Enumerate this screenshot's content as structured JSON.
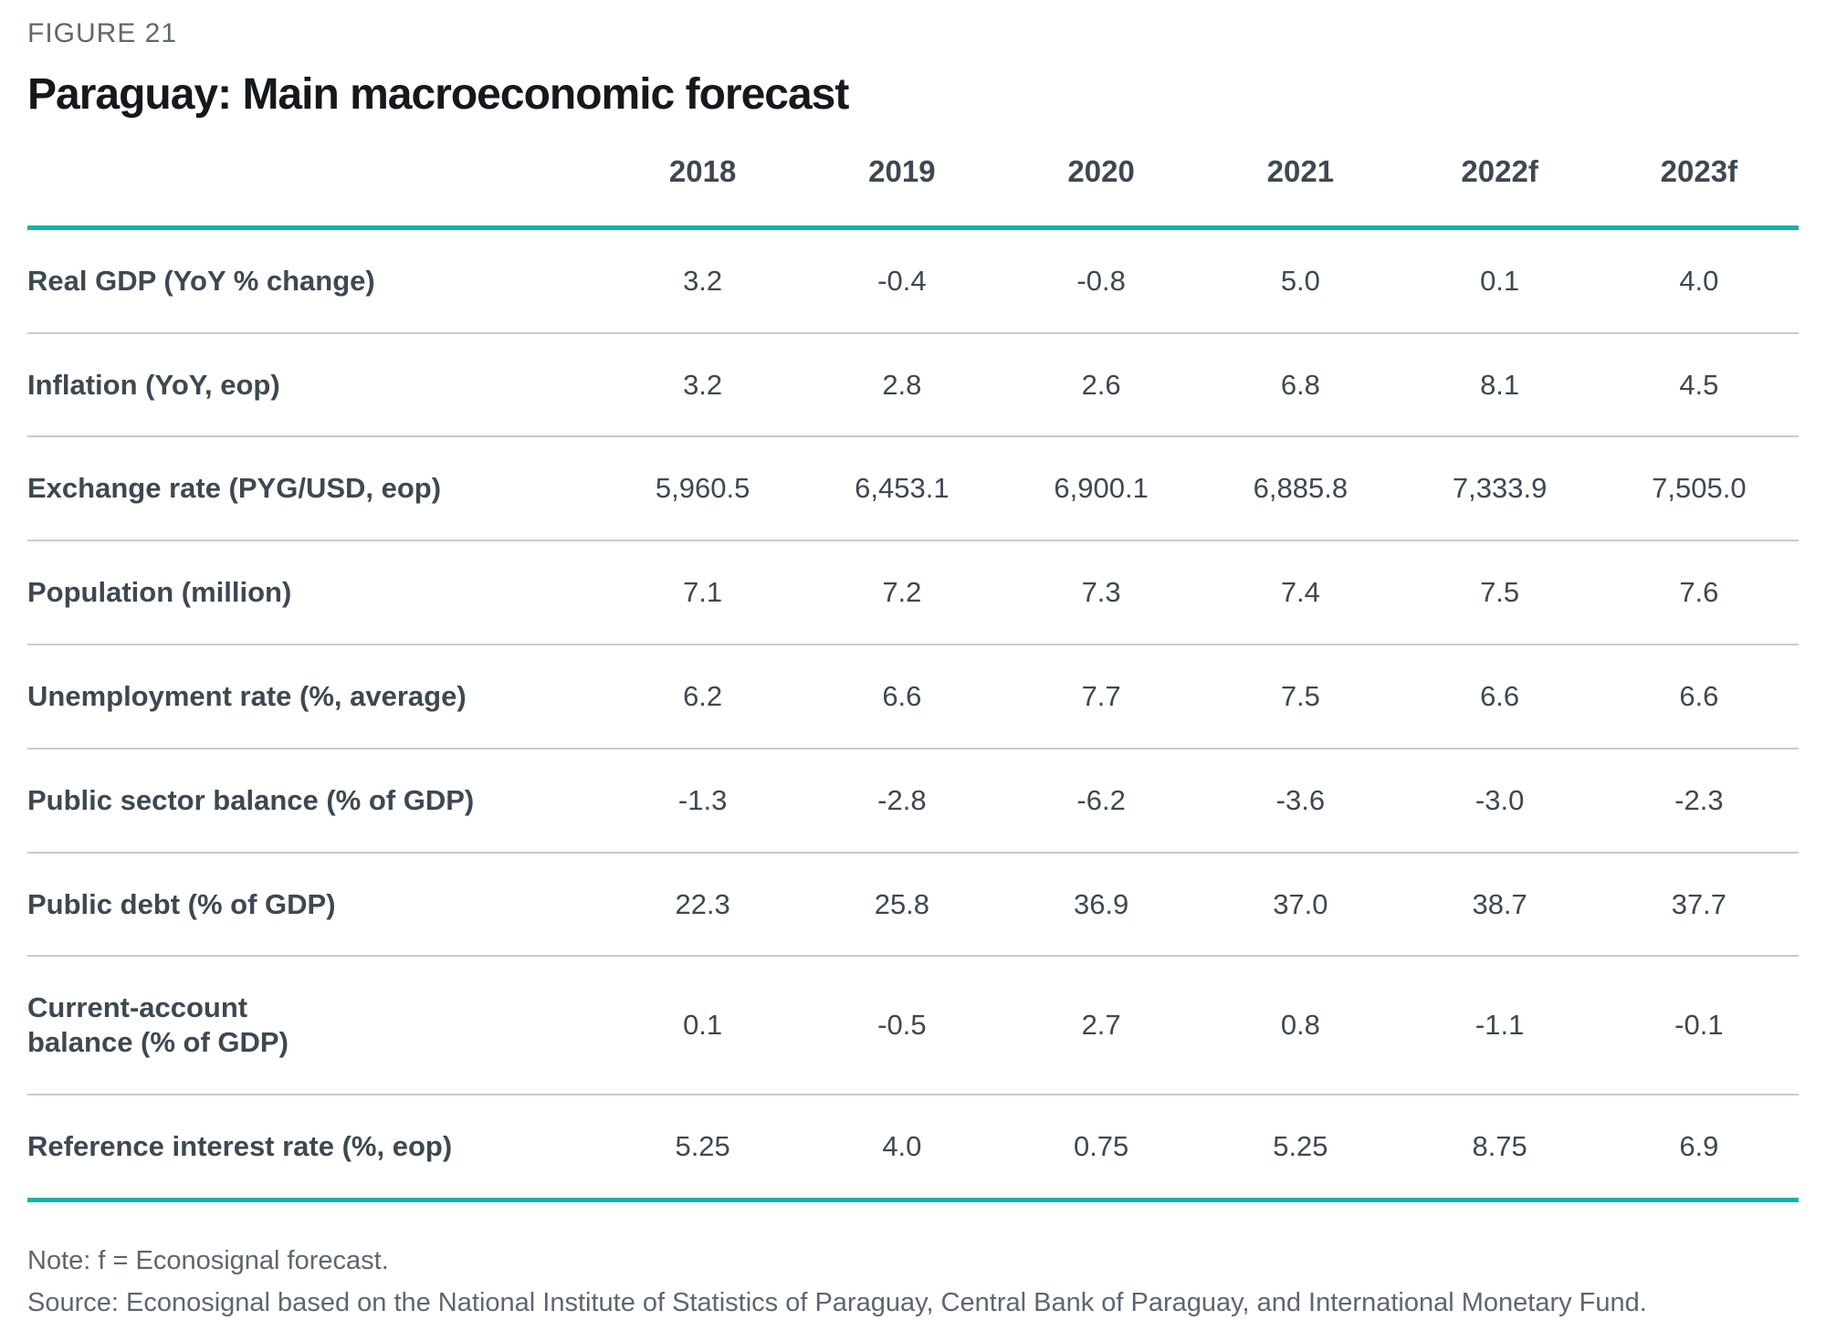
{
  "figure_label": "FIGURE 21",
  "title": "Paraguay: Main macroeconomic forecast",
  "colors": {
    "accent_teal": "#12b3ab",
    "title_black": "#15181c",
    "figure_label_gray": "#5f6770",
    "table_text_dark": "#3d4852",
    "row_divider_gray": "#c6cbcf",
    "footnote_gray": "#5d6670"
  },
  "chart_data": {
    "type": "table",
    "title": "Paraguay: Main macroeconomic forecast",
    "columns": [
      "2018",
      "2019",
      "2020",
      "2021",
      "2022f",
      "2023f"
    ],
    "rows": [
      {
        "label": "Real GDP (YoY % change)",
        "values": [
          "3.2",
          "-0.4",
          "-0.8",
          "5.0",
          "0.1",
          "4.0"
        ]
      },
      {
        "label": "Inflation (YoY, eop)",
        "values": [
          "3.2",
          "2.8",
          "2.6",
          "6.8",
          "8.1",
          "4.5"
        ]
      },
      {
        "label": "Exchange rate (PYG/USD, eop)",
        "values": [
          "5,960.5",
          "6,453.1",
          "6,900.1",
          "6,885.8",
          "7,333.9",
          "7,505.0"
        ]
      },
      {
        "label": "Population (million)",
        "values": [
          "7.1",
          "7.2",
          "7.3",
          "7.4",
          "7.5",
          "7.6"
        ]
      },
      {
        "label": "Unemployment rate (%, average)",
        "values": [
          "6.2",
          "6.6",
          "7.7",
          "7.5",
          "6.6",
          "6.6"
        ]
      },
      {
        "label": "Public sector balance (% of GDP)",
        "values": [
          "-1.3",
          "-2.8",
          "-6.2",
          "-3.6",
          "-3.0",
          "-2.3"
        ]
      },
      {
        "label": "Public debt (% of GDP)",
        "values": [
          "22.3",
          "25.8",
          "36.9",
          "37.0",
          "38.7",
          "37.7"
        ]
      },
      {
        "label": "Current-account\nbalance (% of GDP)",
        "values": [
          "0.1",
          "-0.5",
          "2.7",
          "0.8",
          "-1.1",
          "-0.1"
        ]
      },
      {
        "label": "Reference interest rate (%, eop)",
        "values": [
          "5.25",
          "4.0",
          "0.75",
          "5.25",
          "8.75",
          "6.9"
        ]
      }
    ]
  },
  "footer": {
    "note": "Note: f = Econosignal forecast.",
    "source": "Source: Econosignal based on the National Institute of Statistics of Paraguay, Central Bank of Paraguay, and International Monetary Fund."
  }
}
